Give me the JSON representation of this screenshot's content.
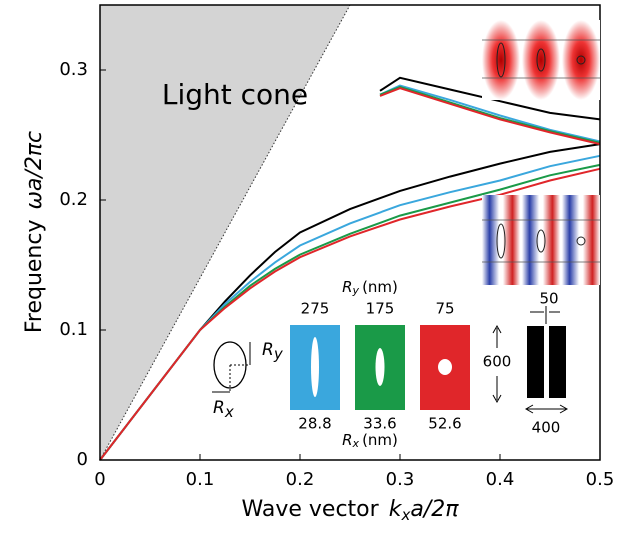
{
  "chart_data": {
    "type": "line",
    "x_label": {
      "text": "Wave vector",
      "symbol": "k",
      "subscript": "x",
      "rest": "a/2π"
    },
    "y_label": {
      "text": "Frequency",
      "symbol": "ω",
      "rest": "a/2π",
      "tail": "c"
    },
    "xlim": [
      0,
      0.5
    ],
    "ylim": [
      0,
      0.35
    ],
    "xticks": [
      0,
      0.1,
      0.2,
      0.3,
      0.4,
      0.5
    ],
    "yticks": [
      0,
      0.1,
      0.2,
      0.3
    ],
    "light_line": {
      "label": "Light cone",
      "x": [
        0,
        0.25
      ],
      "y": [
        0,
        0.35
      ],
      "color": "#d4d4d4"
    },
    "series": [
      {
        "color": "#000000",
        "x": [
          0,
          0.05,
          0.1,
          0.125,
          0.15,
          0.175,
          0.2,
          0.25,
          0.3,
          0.35,
          0.4,
          0.45,
          0.5
        ],
        "values": [
          0,
          0.05,
          0.1,
          0.122,
          0.142,
          0.16,
          0.175,
          0.193,
          0.207,
          0.218,
          0.228,
          0.237,
          0.243
        ]
      },
      {
        "color": "#3aa7dd",
        "x": [
          0,
          0.05,
          0.1,
          0.125,
          0.15,
          0.175,
          0.2,
          0.25,
          0.3,
          0.35,
          0.4,
          0.45,
          0.5
        ],
        "values": [
          0,
          0.05,
          0.1,
          0.12,
          0.137,
          0.152,
          0.165,
          0.182,
          0.196,
          0.206,
          0.215,
          0.226,
          0.234
        ]
      },
      {
        "color": "#1a9a48",
        "x": [
          0,
          0.05,
          0.1,
          0.125,
          0.15,
          0.175,
          0.2,
          0.25,
          0.3,
          0.35,
          0.4,
          0.45,
          0.5
        ],
        "values": [
          0,
          0.05,
          0.1,
          0.118,
          0.134,
          0.147,
          0.158,
          0.174,
          0.188,
          0.198,
          0.208,
          0.219,
          0.227
        ]
      },
      {
        "color": "#e0262a",
        "x": [
          0,
          0.05,
          0.1,
          0.125,
          0.15,
          0.175,
          0.2,
          0.25,
          0.3,
          0.35,
          0.4,
          0.45,
          0.5
        ],
        "values": [
          0,
          0.05,
          0.1,
          0.117,
          0.132,
          0.145,
          0.156,
          0.172,
          0.185,
          0.195,
          0.204,
          0.215,
          0.224
        ]
      },
      {
        "color": "#000000",
        "x": [
          0.28,
          0.3,
          0.35,
          0.4,
          0.45,
          0.5
        ],
        "values": [
          0.284,
          0.294,
          0.285,
          0.276,
          0.267,
          0.262
        ]
      },
      {
        "color": "#3aa7dd",
        "x": [
          0.28,
          0.3,
          0.35,
          0.4,
          0.45,
          0.5
        ],
        "values": [
          0.281,
          0.288,
          0.277,
          0.265,
          0.254,
          0.245
        ]
      },
      {
        "color": "#1a9a48",
        "x": [
          0.28,
          0.3,
          0.35,
          0.4,
          0.45,
          0.5
        ],
        "values": [
          0.281,
          0.287,
          0.275,
          0.263,
          0.253,
          0.244
        ]
      },
      {
        "color": "#e0262a",
        "x": [
          0.28,
          0.3,
          0.35,
          0.4,
          0.45,
          0.5
        ],
        "values": [
          0.28,
          0.286,
          0.274,
          0.262,
          0.252,
          0.243
        ]
      }
    ],
    "inset": {
      "ry_header": {
        "symbol": "R",
        "subscript": "y",
        "unit": "(nm)"
      },
      "rx_footer": {
        "symbol": "R",
        "subscript": "x",
        "unit": "(nm)"
      },
      "ry_values": [
        "275",
        "175",
        "75"
      ],
      "rx_values": [
        "28.8",
        "33.6",
        "52.6"
      ],
      "ellipse_ry": {
        "symbol": "R",
        "subscript": "y"
      },
      "ellipse_rx": {
        "symbol": "R",
        "subscript": "x"
      },
      "slot_gap": "50",
      "slot_height": "600",
      "slot_width": "400"
    }
  }
}
